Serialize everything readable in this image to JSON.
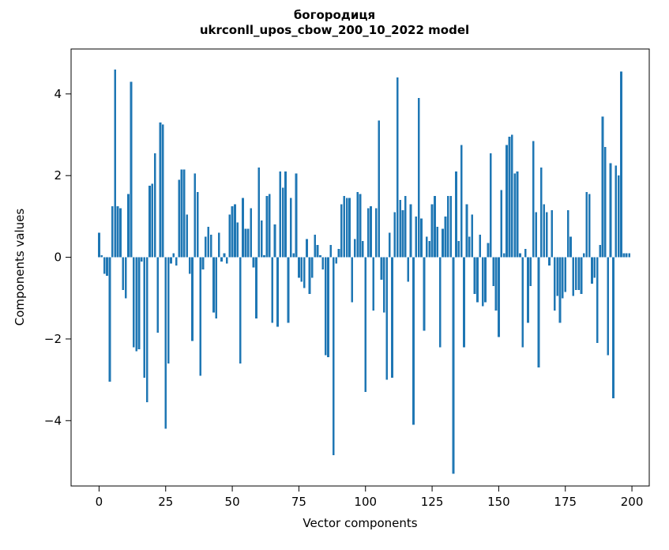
{
  "chart_data": {
    "type": "bar",
    "title": "богородиця",
    "subtitle": "ukrconll_upos_cbow_200_10_2022 model",
    "xlabel": "Vector components",
    "ylabel": "Components values",
    "bar_color": "#1f77b4",
    "grid": false,
    "legend_position": "none",
    "xticks": [
      0,
      25,
      50,
      75,
      100,
      125,
      150,
      175,
      200
    ],
    "yticks": [
      -4,
      -2,
      0,
      2,
      4
    ],
    "xlim": [
      -10.5,
      206.5
    ],
    "ylim": [
      -5.6,
      5.1
    ],
    "x_start": 0,
    "values": [
      0.6,
      0.05,
      -0.4,
      -0.45,
      -3.05,
      1.25,
      4.6,
      1.25,
      1.2,
      -0.8,
      -1.0,
      1.55,
      4.3,
      -2.2,
      -2.3,
      -2.25,
      -0.1,
      -2.95,
      -3.55,
      1.75,
      1.8,
      2.55,
      -1.85,
      3.3,
      3.25,
      -4.2,
      -2.6,
      -0.15,
      0.1,
      -0.2,
      1.9,
      2.15,
      2.15,
      1.05,
      -0.4,
      -2.05,
      2.05,
      1.6,
      -2.9,
      -0.3,
      0.5,
      0.75,
      0.55,
      -1.35,
      -1.5,
      0.6,
      -0.1,
      0.1,
      -0.15,
      1.05,
      1.25,
      1.3,
      0.85,
      -2.6,
      1.45,
      0.7,
      0.7,
      1.2,
      -0.25,
      -1.5,
      2.2,
      0.9,
      0.05,
      1.5,
      1.55,
      -1.6,
      0.8,
      -1.7,
      2.1,
      1.7,
      2.1,
      -1.6,
      1.45,
      0.1,
      2.05,
      -0.5,
      -0.6,
      -0.75,
      0.45,
      -0.9,
      -0.5,
      0.55,
      0.3,
      0.05,
      -0.3,
      -2.4,
      -2.45,
      0.3,
      -4.85,
      -0.15,
      0.2,
      1.3,
      1.5,
      1.45,
      1.45,
      -1.1,
      0.45,
      1.6,
      1.55,
      0.4,
      -3.3,
      1.2,
      1.25,
      -1.3,
      1.2,
      3.35,
      -0.55,
      -1.35,
      -3.0,
      0.6,
      -2.95,
      1.1,
      4.4,
      1.4,
      1.15,
      1.5,
      -0.6,
      1.3,
      -4.1,
      1.0,
      3.9,
      0.95,
      -1.8,
      0.5,
      0.4,
      1.3,
      1.5,
      0.75,
      -2.2,
      0.7,
      1.0,
      1.5,
      1.5,
      -5.3,
      2.1,
      0.4,
      2.75,
      -2.2,
      1.3,
      0.5,
      1.05,
      -0.9,
      -1.1,
      0.55,
      -1.2,
      -1.1,
      0.35,
      2.55,
      -0.7,
      -1.3,
      -1.95,
      1.65,
      0.1,
      2.75,
      2.95,
      3.0,
      2.05,
      2.1,
      0.1,
      -2.2,
      0.2,
      -1.6,
      -0.7,
      2.85,
      1.1,
      -2.7,
      2.2,
      1.3,
      1.1,
      -0.2,
      1.15,
      -1.3,
      -0.95,
      -1.6,
      -1.0,
      -0.85,
      1.15,
      0.5,
      -0.95,
      -0.8,
      -0.8,
      -0.9,
      0.1,
      1.6,
      1.55,
      -0.65,
      -0.5,
      -2.1,
      0.3,
      3.45,
      2.7,
      -2.4,
      2.3,
      -3.45,
      2.25,
      2.0,
      4.55,
      0.1,
      0.1,
      0.1
    ]
  }
}
